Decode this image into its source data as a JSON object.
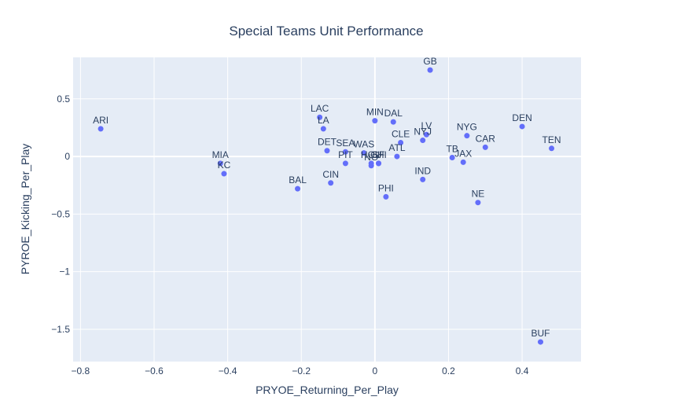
{
  "chart_data": {
    "type": "scatter",
    "title": "Special Teams Unit Performance",
    "xlabel": "PRYOE_Returning_Per_Play",
    "ylabel": "PYROE_Kicking_Per_Play",
    "xlim": [
      -0.82,
      0.56
    ],
    "ylim": [
      -1.78,
      0.86
    ],
    "xticks": [
      -0.8,
      -0.6,
      -0.4,
      -0.2,
      0,
      0.2,
      0.4
    ],
    "xtick_labels": [
      "−0.8",
      "−0.6",
      "−0.4",
      "−0.2",
      "0",
      "0.2",
      "0.4"
    ],
    "yticks": [
      0.5,
      0,
      -0.5,
      -1,
      -1.5
    ],
    "ytick_labels": [
      "0.5",
      "0",
      "−0.5",
      "−1",
      "−1.5"
    ],
    "grid": true,
    "marker_color": "#636efa",
    "plot_bg": "#e5ecf6",
    "points": [
      {
        "label": "GB",
        "x": 0.15,
        "y": 0.75
      },
      {
        "label": "ARI",
        "x": -0.745,
        "y": 0.24
      },
      {
        "label": "LAC",
        "x": -0.15,
        "y": 0.34
      },
      {
        "label": "LA",
        "x": -0.14,
        "y": 0.24
      },
      {
        "label": "MIN",
        "x": 0.0,
        "y": 0.31
      },
      {
        "label": "DAL",
        "x": 0.05,
        "y": 0.3
      },
      {
        "label": "LV",
        "x": 0.14,
        "y": 0.19
      },
      {
        "label": "NYJ",
        "x": 0.13,
        "y": 0.14
      },
      {
        "label": "NYG",
        "x": 0.25,
        "y": 0.18
      },
      {
        "label": "DEN",
        "x": 0.4,
        "y": 0.26
      },
      {
        "label": "CAR",
        "x": 0.3,
        "y": 0.08
      },
      {
        "label": "TEN",
        "x": 0.48,
        "y": 0.07
      },
      {
        "label": "CLE",
        "x": 0.07,
        "y": 0.12
      },
      {
        "label": "ATL",
        "x": 0.06,
        "y": 0.0
      },
      {
        "label": "TB",
        "x": 0.21,
        "y": -0.01
      },
      {
        "label": "JAX",
        "x": 0.24,
        "y": -0.05
      },
      {
        "label": "DET",
        "x": -0.13,
        "y": 0.05
      },
      {
        "label": "SEA",
        "x": -0.08,
        "y": 0.04
      },
      {
        "label": "PIT",
        "x": -0.08,
        "y": -0.06
      },
      {
        "label": "WAS",
        "x": -0.03,
        "y": 0.03
      },
      {
        "label": "HOU",
        "x": -0.01,
        "y": -0.06
      },
      {
        "label": "NO",
        "x": -0.01,
        "y": -0.08
      },
      {
        "label": "SF",
        "x": 0.01,
        "y": -0.06
      },
      {
        "label": "CHI",
        "x": 0.01,
        "y": -0.06
      },
      {
        "label": "MIA",
        "x": -0.42,
        "y": -0.06
      },
      {
        "label": "KC",
        "x": -0.41,
        "y": -0.15
      },
      {
        "label": "BAL",
        "x": -0.21,
        "y": -0.28
      },
      {
        "label": "CIN",
        "x": -0.12,
        "y": -0.23
      },
      {
        "label": "IND",
        "x": 0.13,
        "y": -0.2
      },
      {
        "label": "PHI",
        "x": 0.03,
        "y": -0.35
      },
      {
        "label": "NE",
        "x": 0.28,
        "y": -0.4
      },
      {
        "label": "BUF",
        "x": 0.45,
        "y": -1.61
      }
    ]
  }
}
